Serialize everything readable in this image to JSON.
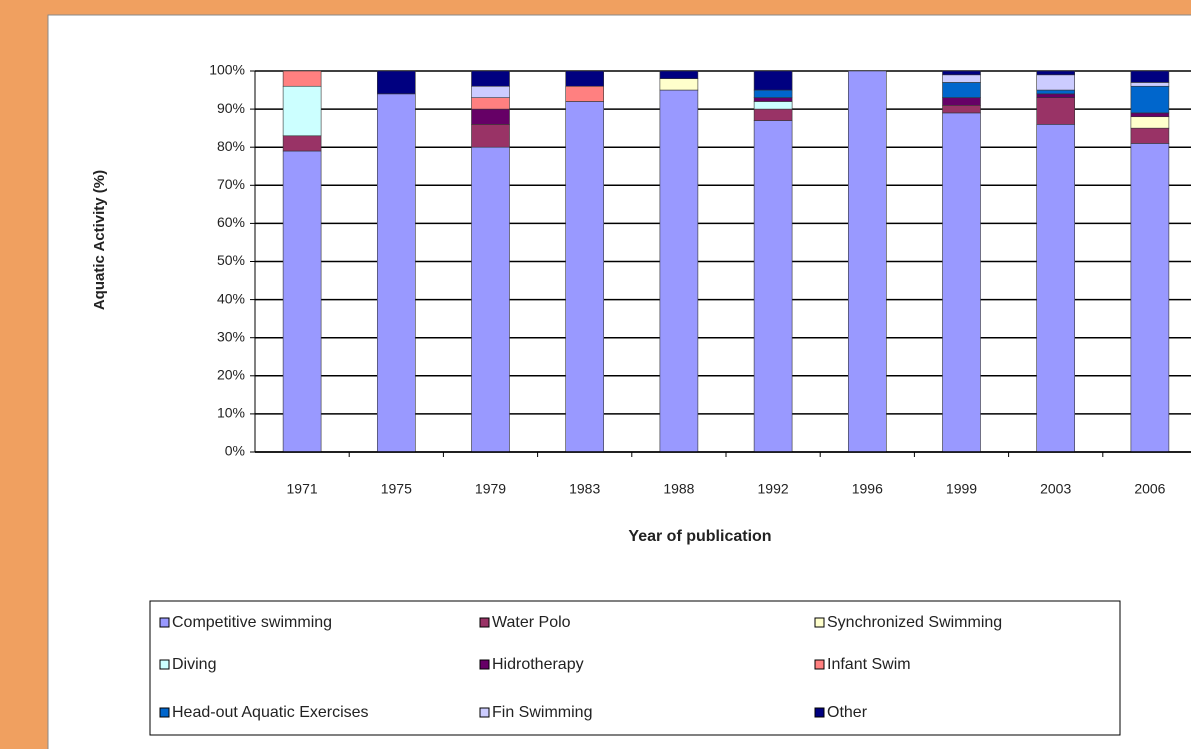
{
  "chart_data": {
    "type": "stacked_bar",
    "y_label": "Aquatic Activity (%)",
    "x_label": "Year of publication",
    "categories": [
      "1971",
      "1975",
      "1979",
      "1983",
      "1988",
      "1992",
      "1996",
      "1999",
      "2003",
      "2006"
    ],
    "series": [
      {
        "name": "Competitive swimming",
        "color": "#9999ff",
        "values": [
          79,
          94,
          80,
          92,
          95,
          87,
          100,
          89,
          86,
          81
        ]
      },
      {
        "name": "Water Polo",
        "color": "#993366",
        "values": [
          4,
          0,
          6,
          0,
          0,
          3,
          0,
          2,
          7,
          4
        ]
      },
      {
        "name": "Synchronized Swimming",
        "color": "#ffffcc",
        "values": [
          0,
          0,
          0,
          0,
          3,
          0,
          0,
          0,
          0,
          3
        ]
      },
      {
        "name": "Diving",
        "color": "#ccffff",
        "values": [
          13,
          0,
          0,
          0,
          0,
          2,
          0,
          0,
          0,
          0
        ]
      },
      {
        "name": "Hidrotherapy",
        "color": "#660066",
        "values": [
          0,
          0,
          4,
          0,
          0,
          1,
          0,
          2,
          1,
          1
        ]
      },
      {
        "name": "Infant Swim",
        "color": "#ff8080",
        "values": [
          4,
          0,
          3,
          4,
          0,
          0,
          0,
          0,
          0,
          0
        ]
      },
      {
        "name": "Head-out Aquatic Exercises",
        "color": "#0066cc",
        "values": [
          0,
          0,
          0,
          0,
          0,
          2,
          0,
          4,
          1,
          7
        ]
      },
      {
        "name": "Fin Swimming",
        "color": "#ccccff",
        "values": [
          0,
          0,
          3,
          0,
          0,
          0,
          0,
          2,
          4,
          1
        ]
      },
      {
        "name": "Other",
        "color": "#000080",
        "values": [
          0,
          6,
          4,
          4,
          2,
          5,
          0,
          1,
          1,
          3
        ]
      }
    ],
    "ylim": [
      0,
      100
    ],
    "yticks": [
      {
        "value": 0,
        "label": "0%"
      },
      {
        "value": 10,
        "label": "10%"
      },
      {
        "value": 20,
        "label": "20%"
      },
      {
        "value": 30,
        "label": "30%"
      },
      {
        "value": 40,
        "label": "40%"
      },
      {
        "value": 50,
        "label": "50%"
      },
      {
        "value": 60,
        "label": "60%"
      },
      {
        "value": 70,
        "label": "70%"
      },
      {
        "value": 80,
        "label": "80%"
      },
      {
        "value": 90,
        "label": "90%"
      },
      {
        "value": 100,
        "label": "100%"
      }
    ],
    "grid": true,
    "legend": "bottom"
  }
}
